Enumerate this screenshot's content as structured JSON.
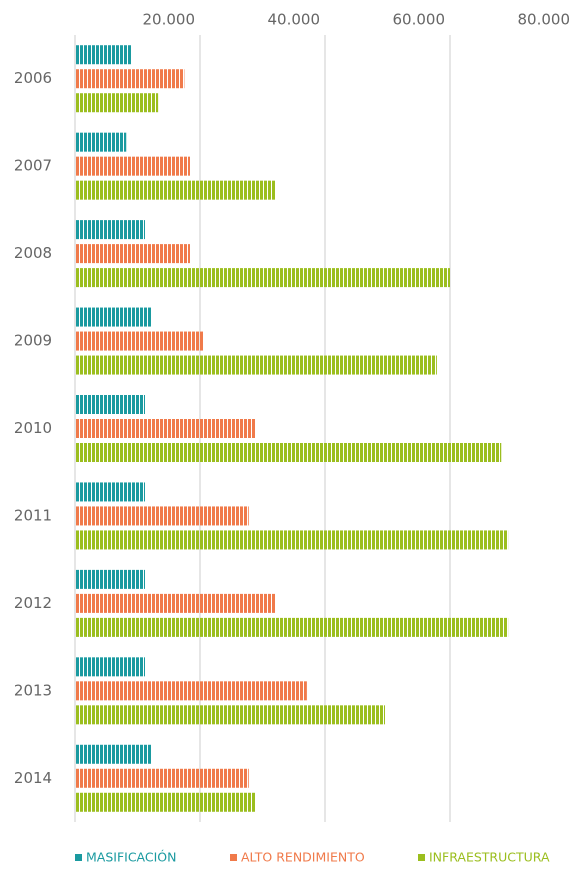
{
  "chart_data": {
    "type": "hbar",
    "categories": [
      "2006",
      "2007",
      "2008",
      "2009",
      "2010",
      "2011",
      "2012",
      "2013",
      "2014"
    ],
    "series": [
      {
        "name": "MASIFICACIÓN",
        "color": "#1a9aa0",
        "values": [
          9000,
          8200,
          11200,
          12200,
          11200,
          11200,
          11200,
          11200,
          12200
        ]
      },
      {
        "name": "ALTO RENDIMIENTO",
        "color": "#f07a4a",
        "values": [
          17500,
          18400,
          18400,
          20500,
          28800,
          27800,
          32000,
          37100,
          27800
        ]
      },
      {
        "name": "INFRAESTRUCTURA",
        "color": "#9bbe1e",
        "values": [
          13300,
          32000,
          60000,
          57900,
          68200,
          69300,
          69300,
          49600,
          28800
        ]
      }
    ],
    "xlim": [
      0,
      80000
    ],
    "xticks": [
      {
        "value": 20000,
        "label": "20.000"
      },
      {
        "value": 40000,
        "label": "40.000"
      },
      {
        "value": 60000,
        "label": "60.000"
      },
      {
        "value": 80000,
        "label": "80.000"
      }
    ],
    "grid": true
  }
}
